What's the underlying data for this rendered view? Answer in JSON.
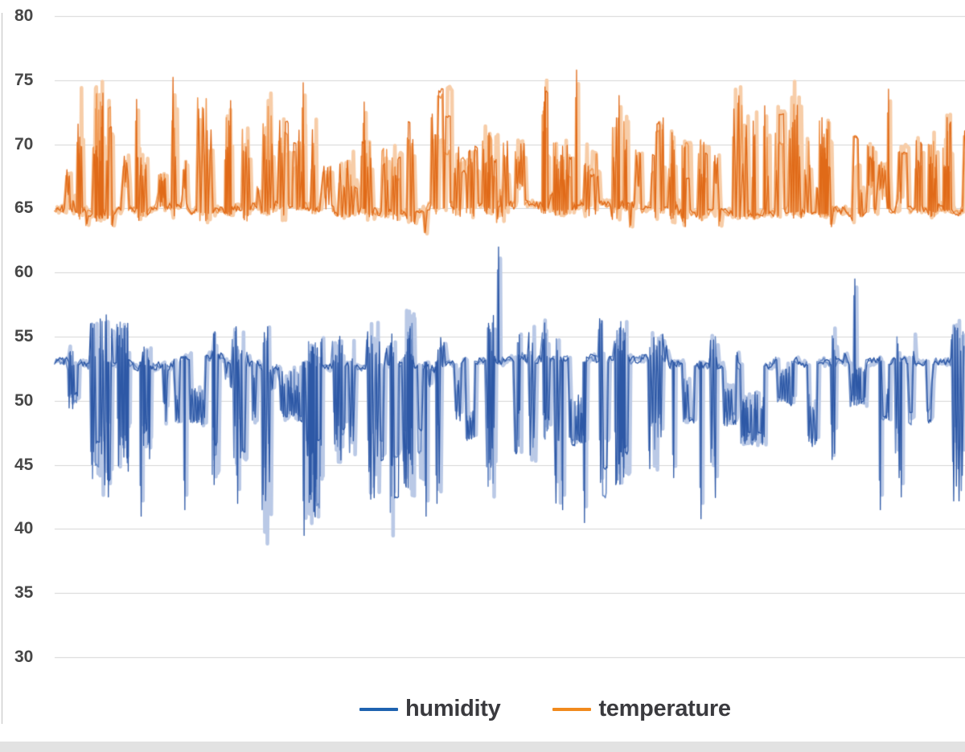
{
  "page": {
    "background": "#ffffff",
    "bottom_strip_color": "#e2e2e2",
    "left_edge_line_color": "#b0b0b0"
  },
  "axis": {
    "label_color": "#474747",
    "gridline_color": "#d4d4d4"
  },
  "legend": {
    "text_color": "#3a3a3e",
    "items": [
      {
        "label": "humidity",
        "color": "#1e62b0"
      },
      {
        "label": "temperature",
        "color": "#f18a1d"
      }
    ]
  },
  "chart_data": {
    "type": "line",
    "title": "",
    "xlabel": "",
    "ylabel": "",
    "x_tick_labels": [],
    "ylim": [
      30,
      80
    ],
    "yticks": [
      80,
      75,
      70,
      65,
      60,
      55,
      50,
      45,
      40,
      35,
      30
    ],
    "grid": true,
    "legend_position": "bottom",
    "description": "High-frequency sensor readings: humidity oscillates around 53 (observed range about 39.5-62), temperature oscillates around 65 (observed range about 63-76).",
    "series": [
      {
        "name": "humidity",
        "color": "#2d58a6",
        "color_mid": "#6b8cc6",
        "color_light": "#bac9e6",
        "baseline": 53,
        "base_range": [
          52.2,
          53.9
        ],
        "main_dir": -1,
        "spike_main": [
          7.0,
          13.0
        ],
        "main_floor": 0.45,
        "spike_counter": [
          2.0,
          5.5
        ],
        "counter_pow": 1.0,
        "block_p": 0.26,
        "block_shift": [
          1.0,
          5.0
        ],
        "block_dir": -1,
        "calm_len": [
          4,
          34
        ],
        "active_len": [
          4,
          32
        ],
        "observed_min": 39.5,
        "observed_max": 62,
        "peaks": [
          {
            "pos": 0.059,
            "value": 42.5
          },
          {
            "pos": 0.095,
            "value": 41.0
          },
          {
            "pos": 0.143,
            "value": 41.5
          },
          {
            "pos": 0.201,
            "value": 42.0
          },
          {
            "pos": 0.274,
            "value": 39.5
          },
          {
            "pos": 0.408,
            "value": 41.0
          },
          {
            "pos": 0.42,
            "value": 42.0
          },
          {
            "pos": 0.4876,
            "value": 62.0
          },
          {
            "pos": 0.558,
            "value": 41.5
          },
          {
            "pos": 0.582,
            "value": 40.5
          },
          {
            "pos": 0.68,
            "value": 44.0
          },
          {
            "pos": 0.71,
            "value": 40.8
          },
          {
            "pos": 0.879,
            "value": 59.5
          },
          {
            "pos": 0.907,
            "value": 41.5
          },
          {
            "pos": 0.93,
            "value": 42.5
          }
        ]
      },
      {
        "name": "temperature",
        "color": "#e06a18",
        "color_mid": "#f09a55",
        "color_light": "#f7cda8",
        "baseline": 65,
        "base_range": [
          64.6,
          65.4
        ],
        "main_dir": 1,
        "spike_main": [
          4.0,
          9.8
        ],
        "main_floor": 0.35,
        "spike_counter": [
          0.3,
          1.6
        ],
        "counter_pow": 1.6,
        "block_p": 0.2,
        "block_shift": [
          1.2,
          2.8
        ],
        "block_dir": 1,
        "calm_len": [
          3,
          28
        ],
        "active_len": [
          4,
          32
        ],
        "observed_min": 63,
        "observed_max": 75.8,
        "peaks": [
          {
            "pos": 0.09,
            "value": 73.5
          },
          {
            "pos": 0.273,
            "value": 74.8
          },
          {
            "pos": 0.34,
            "value": 73.3
          },
          {
            "pos": 0.5733,
            "value": 75.8
          },
          {
            "pos": 0.62,
            "value": 73.8
          },
          {
            "pos": 0.78,
            "value": 73.0
          },
          {
            "pos": 0.916,
            "value": 74.3
          }
        ]
      }
    ]
  }
}
